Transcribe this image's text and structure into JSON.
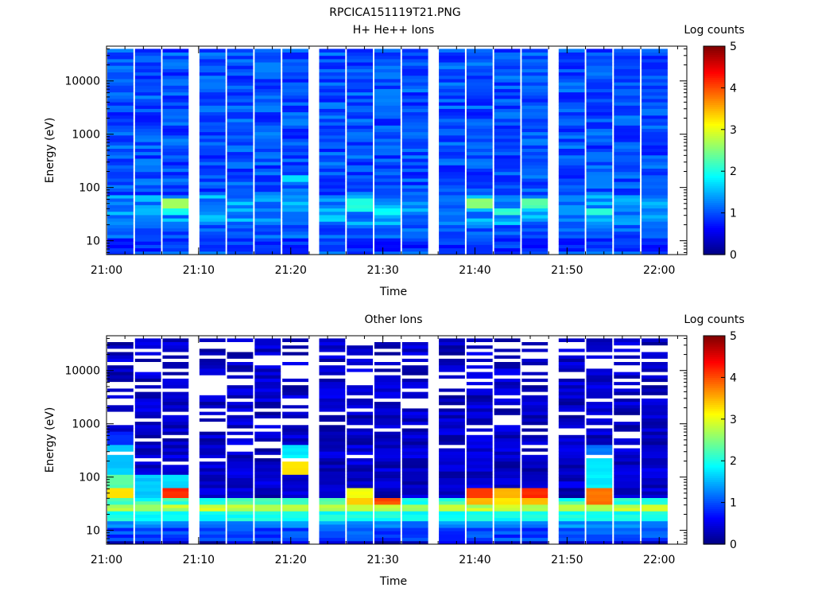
{
  "page_title": "RPCICA151119T21.PNG",
  "chart_data": [
    {
      "type": "heatmap",
      "title": "H+ He++ Ions",
      "xlabel": "Time",
      "ylabel": "Energy (eV)",
      "yscale": "log",
      "xlim": [
        "21:00",
        "22:03"
      ],
      "ylim": [
        5.5,
        45000
      ],
      "x_ticks": [
        "21:00",
        "21:10",
        "21:20",
        "21:30",
        "21:40",
        "21:50",
        "22:00"
      ],
      "y_ticks": [
        "10",
        "100",
        "1000",
        "10000"
      ],
      "time_columns": [
        "21:00",
        "21:03",
        "21:06",
        "21:10",
        "21:13",
        "21:16",
        "21:19",
        "21:23",
        "21:26",
        "21:29",
        "21:32",
        "21:36",
        "21:39",
        "21:42",
        "21:45",
        "21:49",
        "21:52",
        "21:55",
        "21:58"
      ],
      "colorbar": {
        "label": "Log counts",
        "range": [
          0,
          5
        ],
        "ticks": [
          "0",
          "1",
          "2",
          "3",
          "4",
          "5"
        ]
      },
      "grid": false,
      "seed": 7,
      "background_level": [
        0.7,
        1.3
      ],
      "low_energy_bands": [
        {
          "emin": 6,
          "emax": 12,
          "level": [
            0.6,
            1.1
          ]
        },
        {
          "emin": 12,
          "emax": 20,
          "level": [
            0.8,
            1.3
          ]
        },
        {
          "emin": 20,
          "emax": 70,
          "level": [
            1.0,
            1.7
          ]
        }
      ],
      "hotspots": [
        {
          "col": 2,
          "emin": 40,
          "emax": 60,
          "level": 2.6
        },
        {
          "col": 2,
          "emin": 32,
          "emax": 40,
          "level": 2.0
        },
        {
          "col": 8,
          "emin": 34,
          "emax": 60,
          "level": 2.0
        },
        {
          "col": 9,
          "emin": 30,
          "emax": 40,
          "level": 1.9
        },
        {
          "col": 6,
          "emin": 130,
          "emax": 170,
          "level": 1.7
        },
        {
          "col": 12,
          "emin": 40,
          "emax": 60,
          "level": 2.6
        },
        {
          "col": 13,
          "emin": 30,
          "emax": 40,
          "level": 2.1
        },
        {
          "col": 14,
          "emin": 40,
          "emax": 60,
          "level": 2.3
        },
        {
          "col": 16,
          "emin": 30,
          "emax": 40,
          "level": 2.1
        }
      ],
      "white_gaps": false
    },
    {
      "type": "heatmap",
      "title": "Other Ions",
      "xlabel": "Time",
      "ylabel": "Energy (eV)",
      "yscale": "log",
      "xlim": [
        "21:00",
        "22:03"
      ],
      "ylim": [
        5.5,
        45000
      ],
      "x_ticks": [
        "21:00",
        "21:10",
        "21:20",
        "21:30",
        "21:40",
        "21:50",
        "22:00"
      ],
      "y_ticks": [
        "10",
        "100",
        "1000",
        "10000"
      ],
      "time_columns": [
        "21:00",
        "21:03",
        "21:06",
        "21:10",
        "21:13",
        "21:16",
        "21:19",
        "21:23",
        "21:26",
        "21:29",
        "21:32",
        "21:36",
        "21:39",
        "21:42",
        "21:45",
        "21:49",
        "21:52",
        "21:55",
        "21:58"
      ],
      "colorbar": {
        "label": "Log counts",
        "range": [
          0,
          5
        ],
        "ticks": [
          "0",
          "1",
          "2",
          "3",
          "4",
          "5"
        ]
      },
      "grid": false,
      "seed": 13,
      "background_level": [
        0.1,
        0.6
      ],
      "low_energy_bands": [
        {
          "emin": 6,
          "emax": 12,
          "level": [
            0.7,
            1.2
          ]
        },
        {
          "emin": 12,
          "emax": 16,
          "level": [
            1.1,
            1.5
          ]
        },
        {
          "emin": 16,
          "emax": 22,
          "level": [
            1.8,
            2.1
          ]
        },
        {
          "emin": 22,
          "emax": 32,
          "level": [
            2.6,
            3.0
          ]
        },
        {
          "emin": 32,
          "emax": 42,
          "level": [
            1.8,
            2.4
          ]
        }
      ],
      "hotspots": [
        {
          "col": 0,
          "emin": 42,
          "emax": 60,
          "level": 3.2
        },
        {
          "col": 0,
          "emin": 60,
          "emax": 120,
          "level": 2.3
        },
        {
          "col": 0,
          "emin": 120,
          "emax": 400,
          "level": 1.6
        },
        {
          "col": 0,
          "emin": 400,
          "emax": 700,
          "level": 0.8
        },
        {
          "col": 1,
          "emin": 42,
          "emax": 120,
          "level": 1.6
        },
        {
          "col": 2,
          "emin": 42,
          "emax": 60,
          "level": 4.2
        },
        {
          "col": 2,
          "emin": 60,
          "emax": 120,
          "level": 1.7
        },
        {
          "col": 6,
          "emin": 120,
          "emax": 220,
          "level": 3.2
        },
        {
          "col": 6,
          "emin": 220,
          "emax": 400,
          "level": 1.8
        },
        {
          "col": 8,
          "emin": 42,
          "emax": 60,
          "level": 3.1
        },
        {
          "col": 8,
          "emin": 32,
          "emax": 42,
          "level": 3.3
        },
        {
          "col": 9,
          "emin": 32,
          "emax": 42,
          "level": 4.0
        },
        {
          "col": 12,
          "emin": 42,
          "emax": 60,
          "level": 4.1
        },
        {
          "col": 12,
          "emin": 32,
          "emax": 42,
          "level": 3.5
        },
        {
          "col": 13,
          "emin": 42,
          "emax": 60,
          "level": 3.5
        },
        {
          "col": 13,
          "emin": 32,
          "emax": 42,
          "level": 3.2
        },
        {
          "col": 14,
          "emin": 42,
          "emax": 60,
          "level": 4.2
        },
        {
          "col": 14,
          "emin": 32,
          "emax": 42,
          "level": 3.5
        },
        {
          "col": 16,
          "emin": 32,
          "emax": 60,
          "level": 3.8
        },
        {
          "col": 16,
          "emin": 60,
          "emax": 250,
          "level": 1.8
        },
        {
          "col": 16,
          "emin": 250,
          "emax": 400,
          "level": 1.2
        }
      ],
      "white_gaps": true
    }
  ]
}
